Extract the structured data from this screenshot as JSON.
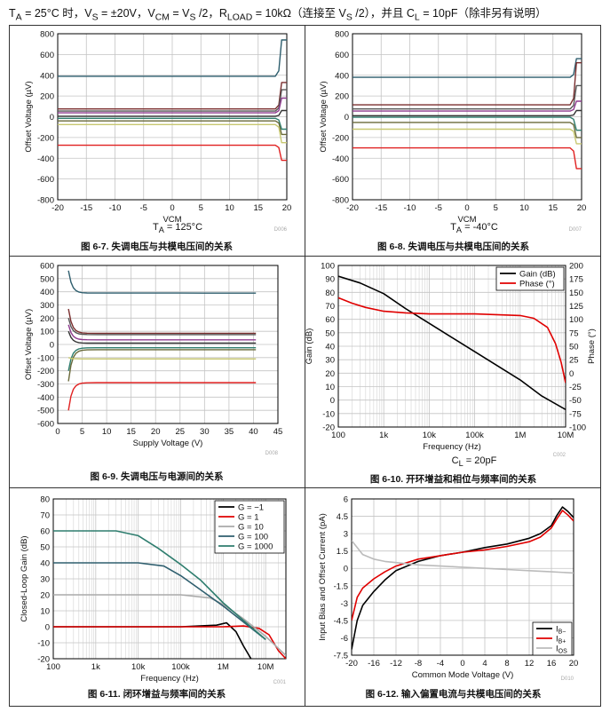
{
  "header": "TA = 25°C 时，VS = ±20V，VCM = VS /2，RLOAD = 10kΩ（连接至 VS /2），并且 CL = 10pF（除非另有说明）",
  "header_parts": {
    "t": "T",
    "t_sub": "A",
    "t1": " = 25°C 时，V",
    "vs_sub": "S",
    "t2": " = ±20V，V",
    "vcm_sub": "CM",
    "t3": " = V",
    "vs2_sub": "S",
    "t4": " /2，R",
    "rl_sub": "LOAD",
    "t5": " = 10kΩ（连接至 V",
    "vs3_sub": "S",
    "t6": " /2），并且 C",
    "cl_sub": "L",
    "t7": " = 10pF（除非另有说明）"
  },
  "panels": [
    {
      "caption": "图 6-7. 失调电压与共模电压间的关系",
      "condition": "TA = 125°C",
      "cond_main": "T",
      "cond_sub": "A",
      "cond_rest": " = 125°C",
      "code": "D006"
    },
    {
      "caption": "图 6-8. 失调电压与共模电压间的关系",
      "condition": "TA = -40°C",
      "cond_main": "T",
      "cond_sub": "A",
      "cond_rest": " = -40°C",
      "code": "D007"
    },
    {
      "caption": "图 6-9. 失调电压与电源间的关系",
      "code": "D008"
    },
    {
      "caption": "图 6-10. 开环增益和相位与频率间的关系",
      "condition": "CL = 20pF",
      "cond_main": "C",
      "cond_sub": "L",
      "cond_rest": " = 20pF",
      "code": "C002"
    },
    {
      "caption": "图 6-11. 闭环增益与频率间的关系",
      "code": "C001"
    },
    {
      "caption": "图 6-12. 输入偏置电流与共模电压间的关系",
      "code": "D010"
    }
  ],
  "chart_data": [
    {
      "type": "line",
      "xlabel": "VCM",
      "ylabel": "Offset Voltage (µV)",
      "xlim": [
        -20,
        20
      ],
      "ylim": [
        -800,
        800
      ],
      "xticks": [
        -20,
        -15,
        -10,
        -5,
        0,
        5,
        10,
        15,
        20
      ],
      "yticks": [
        -800,
        -600,
        -400,
        -200,
        0,
        200,
        400,
        600,
        800
      ],
      "grid": true,
      "series": [
        {
          "color": "#2e5e6e",
          "flat": 390,
          "end": 740
        },
        {
          "color": "#7a2e2e",
          "flat": 75,
          "end": 330
        },
        {
          "color": "#555555",
          "flat": 55,
          "end": 260
        },
        {
          "color": "#8e3a8e",
          "flat": 38,
          "end": 180
        },
        {
          "color": "#333333",
          "flat": 5,
          "end": 60
        },
        {
          "color": "#2e7d6e",
          "flat": -15,
          "end": -120
        },
        {
          "color": "#6a6a3a",
          "flat": -40,
          "end": -170
        },
        {
          "color": "#c8c870",
          "flat": -75,
          "end": -250
        },
        {
          "color": "#e02020",
          "flat": -275,
          "end": -420
        }
      ]
    },
    {
      "type": "line",
      "xlabel": "VCM",
      "ylabel": "Offset Voltage (µV)",
      "xlim": [
        -20,
        20
      ],
      "ylim": [
        -800,
        800
      ],
      "xticks": [
        -20,
        -15,
        -10,
        -5,
        0,
        5,
        10,
        15,
        20
      ],
      "yticks": [
        -800,
        -600,
        -400,
        -200,
        0,
        200,
        400,
        600,
        800
      ],
      "grid": true,
      "series": [
        {
          "color": "#2e5e6e",
          "flat": 380,
          "end": 560
        },
        {
          "color": "#7a2e2e",
          "flat": 115,
          "end": 520
        },
        {
          "color": "#555555",
          "flat": 75,
          "end": 300
        },
        {
          "color": "#8e3a8e",
          "flat": 55,
          "end": 150
        },
        {
          "color": "#333333",
          "flat": 10,
          "end": 60
        },
        {
          "color": "#2e7d6e",
          "flat": -5,
          "end": -130
        },
        {
          "color": "#6a6a3a",
          "flat": -55,
          "end": -200
        },
        {
          "color": "#c8c870",
          "flat": -120,
          "end": -260
        },
        {
          "color": "#e02020",
          "flat": -300,
          "end": -500
        }
      ]
    },
    {
      "type": "line",
      "xlabel": "Supply Voltage (V)",
      "ylabel": "Offset Voltage (µV)",
      "xlim": [
        0,
        45
      ],
      "ylim": [
        -600,
        600
      ],
      "xticks": [
        0,
        5,
        10,
        15,
        20,
        25,
        30,
        35,
        40,
        45
      ],
      "yticks": [
        -600,
        -500,
        -400,
        -300,
        -200,
        -100,
        0,
        100,
        200,
        300,
        400,
        500,
        600
      ],
      "grid": true,
      "series": [
        {
          "color": "#2e5e6e",
          "start": 560,
          "flat": 390
        },
        {
          "color": "#7a2e2e",
          "start": 270,
          "flat": 85
        },
        {
          "color": "#555555",
          "start": 200,
          "flat": 75
        },
        {
          "color": "#8e3a8e",
          "start": 150,
          "flat": 35
        },
        {
          "color": "#333333",
          "start": 100,
          "flat": 10
        },
        {
          "color": "#2e7d6e",
          "start": -200,
          "flat": -25
        },
        {
          "color": "#6a6a3a",
          "start": -280,
          "flat": -40
        },
        {
          "color": "#c8c870",
          "start": -100,
          "flat": -110
        },
        {
          "color": "#e02020",
          "start": -500,
          "flat": -290
        }
      ]
    },
    {
      "type": "line",
      "xlabel": "Frequency (Hz)",
      "ylabel": "Gain (dB)",
      "y2label": "Phase (°)",
      "xscale": "log",
      "xlim": [
        100,
        10000000
      ],
      "xticks": [
        100,
        1000,
        10000,
        100000,
        1000000,
        10000000
      ],
      "xtick_labels": [
        "100",
        "1k",
        "10k",
        "100k",
        "1M",
        "10M"
      ],
      "ylim": [
        -20,
        100
      ],
      "yticks": [
        -20,
        -10,
        0,
        10,
        20,
        30,
        40,
        50,
        60,
        70,
        80,
        90,
        100
      ],
      "y2lim": [
        -100,
        200
      ],
      "y2ticks": [
        -100,
        -75,
        -50,
        -25,
        0,
        25,
        50,
        75,
        100,
        125,
        150,
        175,
        200
      ],
      "grid": true,
      "legend": "top-right",
      "series": [
        {
          "name": "Gain (dB)",
          "color": "#000000",
          "axis": "left",
          "x": [
            100,
            300,
            1000,
            3000,
            10000,
            100000,
            1000000,
            3000000,
            10000000
          ],
          "y": [
            92,
            87,
            79,
            68,
            57,
            36,
            15,
            3,
            -7
          ]
        },
        {
          "name": "Phase (°)",
          "color": "#e00000",
          "axis": "right",
          "x": [
            100,
            200,
            400,
            1000,
            3000,
            10000,
            100000,
            1000000,
            2000000,
            4000000,
            6000000,
            8000000,
            10000000
          ],
          "y": [
            140,
            130,
            122,
            115,
            112,
            110,
            110,
            107,
            102,
            85,
            55,
            20,
            -18
          ]
        }
      ]
    },
    {
      "type": "line",
      "xlabel": "Frequency (Hz)",
      "ylabel": "Closed-Loop Gain (dB)",
      "xscale": "log",
      "xlim": [
        100,
        30000000
      ],
      "xticks": [
        100,
        1000,
        10000,
        100000,
        1000000,
        10000000
      ],
      "xtick_labels": [
        "100",
        "1k",
        "10k",
        "100k",
        "1M",
        "10M"
      ],
      "ylim": [
        -20,
        80
      ],
      "yticks": [
        -20,
        -10,
        0,
        10,
        20,
        30,
        40,
        50,
        60,
        70,
        80
      ],
      "grid": true,
      "legend": "top-right",
      "series": [
        {
          "name": "G = −1",
          "color": "#000000",
          "x": [
            100,
            100000,
            700000,
            1200000,
            2000000,
            3000000,
            5000000
          ],
          "y": [
            0,
            0,
            1,
            2.5,
            -3,
            -12,
            -22
          ]
        },
        {
          "name": "G = 1",
          "color": "#e00000",
          "x": [
            100,
            1000000,
            3000000,
            7000000,
            12000000,
            20000000,
            30000000
          ],
          "y": [
            0,
            0,
            0.5,
            -1,
            -5,
            -15,
            -20
          ]
        },
        {
          "name": "G = 10",
          "color": "#aaaaaa",
          "x": [
            100,
            100000,
            500000,
            1000000,
            3000000,
            10000000,
            30000000
          ],
          "y": [
            20,
            20,
            18,
            14,
            5,
            -6,
            -18
          ]
        },
        {
          "name": "G = 100",
          "color": "#2e5e6e",
          "x": [
            100,
            10000,
            40000,
            100000,
            300000,
            1000000,
            3000000,
            10000000
          ],
          "y": [
            40,
            40,
            38,
            32,
            23,
            13,
            3,
            -8
          ]
        },
        {
          "name": "G = 1000",
          "color": "#2e7d6e",
          "x": [
            100,
            3000,
            10000,
            30000,
            100000,
            300000,
            1000000,
            3000000,
            10000000
          ],
          "y": [
            60,
            60,
            57,
            49,
            39,
            29,
            15,
            4,
            -8
          ]
        }
      ]
    },
    {
      "type": "line",
      "xlabel": "Common Mode Voltage (V)",
      "ylabel": "Input Bias and Offset Current (pA)",
      "xlim": [
        -20,
        20
      ],
      "ylim": [
        -7.5,
        6
      ],
      "xticks": [
        -20,
        -16,
        -12,
        -8,
        -4,
        0,
        4,
        8,
        12,
        16,
        20
      ],
      "yticks": [
        -7.5,
        -6,
        -4.5,
        -3,
        -1.5,
        0,
        1.5,
        3,
        4.5,
        6
      ],
      "grid": true,
      "legend": "bottom-right",
      "legend_labels": [
        {
          "main": "I",
          "sub": "B−"
        },
        {
          "main": "I",
          "sub": "B+"
        },
        {
          "main": "I",
          "sub": "OS"
        }
      ],
      "series": [
        {
          "name": "IB−",
          "color": "#000000",
          "x": [
            -20,
            -19,
            -18,
            -16,
            -14,
            -12,
            -8,
            -4,
            0,
            4,
            8,
            12,
            14,
            16,
            17,
            18,
            19,
            20
          ],
          "y": [
            -7,
            -4.5,
            -3.2,
            -2,
            -1,
            -0.2,
            0.6,
            1.1,
            1.4,
            1.8,
            2.1,
            2.6,
            3.0,
            3.7,
            4.6,
            5.3,
            4.9,
            4.4
          ]
        },
        {
          "name": "IB+",
          "color": "#e00000",
          "x": [
            -20,
            -19,
            -18,
            -16,
            -14,
            -12,
            -8,
            -4,
            0,
            4,
            8,
            12,
            14,
            16,
            17,
            18,
            19,
            20
          ],
          "y": [
            -4.5,
            -2.5,
            -1.7,
            -0.9,
            -0.3,
            0.2,
            0.8,
            1.1,
            1.4,
            1.6,
            1.9,
            2.3,
            2.7,
            3.5,
            4.3,
            5.0,
            4.6,
            4.1
          ]
        },
        {
          "name": "IOS",
          "color": "#bbbbbb",
          "x": [
            -20,
            -19,
            -18,
            -16,
            -14,
            -12,
            -8,
            -4,
            0,
            4,
            8,
            12,
            16,
            20
          ],
          "y": [
            2.4,
            1.8,
            1.2,
            0.8,
            0.6,
            0.5,
            0.3,
            0.2,
            0.1,
            0.0,
            -0.1,
            -0.2,
            -0.3,
            -0.4
          ]
        }
      ]
    }
  ]
}
